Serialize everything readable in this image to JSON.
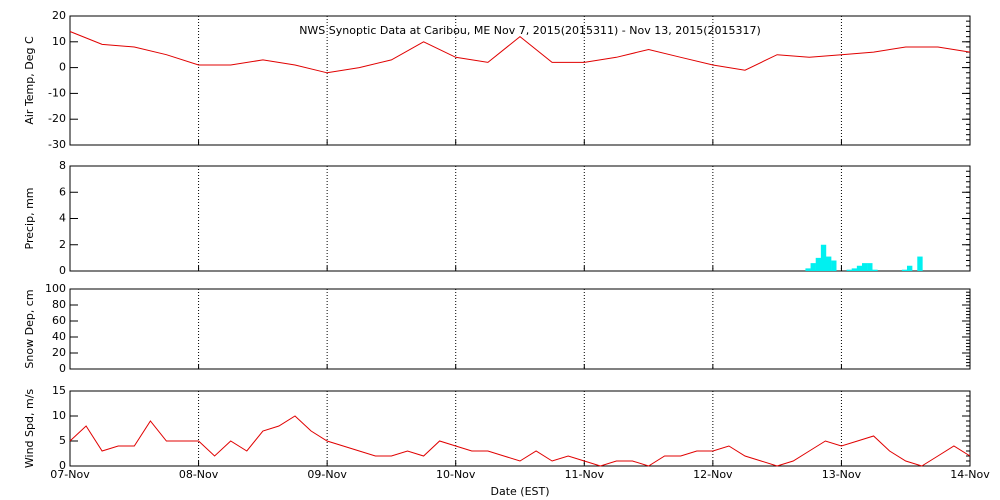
{
  "x_axis": {
    "label": "Date (EST)",
    "xlim": [
      0,
      7
    ],
    "xticks": [
      {
        "value": 0,
        "label": "07-Nov"
      },
      {
        "value": 1,
        "label": "08-Nov"
      },
      {
        "value": 2,
        "label": "09-Nov"
      },
      {
        "value": 3,
        "label": "10-Nov"
      },
      {
        "value": 4,
        "label": "11-Nov"
      },
      {
        "value": 5,
        "label": "12-Nov"
      },
      {
        "value": 6,
        "label": "13-Nov"
      },
      {
        "value": 7,
        "label": "14-Nov"
      }
    ]
  },
  "chart_data": [
    {
      "type": "line",
      "title": "NWS Synoptic Data at Caribou, ME   Nov  7, 2015(2015311) - Nov 13, 2015(2015317)",
      "y_label": "Air Temp, Deg C",
      "ylim": [
        -30,
        20
      ],
      "yticks": [
        -30,
        -20,
        -10,
        0,
        10,
        20
      ],
      "grid": true,
      "color": "#e00000",
      "x": [
        0,
        0.25,
        0.5,
        0.75,
        1,
        1.25,
        1.5,
        1.75,
        2,
        2.25,
        2.5,
        2.75,
        3,
        3.25,
        3.5,
        3.75,
        4,
        4.25,
        4.5,
        4.75,
        5,
        5.25,
        5.5,
        5.75,
        6,
        6.25,
        6.5,
        6.75,
        7
      ],
      "values": [
        14,
        9,
        8,
        5,
        1,
        1,
        3,
        1,
        -2,
        0,
        3,
        10,
        4,
        2,
        12,
        2,
        2,
        4,
        7,
        4,
        1,
        -1,
        5,
        4,
        5,
        6,
        8,
        8,
        6
      ]
    },
    {
      "type": "bar",
      "y_label": "Precip, mm",
      "ylim": [
        0,
        8
      ],
      "yticks": [
        0,
        2,
        4,
        6,
        8
      ],
      "grid": true,
      "color": "#00f0f0",
      "x": [
        5.72,
        5.76,
        5.8,
        5.84,
        5.88,
        5.92,
        6.04,
        6.08,
        6.12,
        6.16,
        6.2,
        6.24,
        6.47,
        6.51,
        6.59
      ],
      "values": [
        0.2,
        0.6,
        1.0,
        2.0,
        1.1,
        0.8,
        0.1,
        0.2,
        0.4,
        0.6,
        0.6,
        0.1,
        0.1,
        0.4,
        1.1
      ]
    },
    {
      "type": "empty",
      "y_label": "Snow Dep, cm",
      "ylim": [
        0,
        100
      ],
      "yticks": [
        0,
        20,
        40,
        60,
        80,
        100
      ],
      "grid": true
    },
    {
      "type": "line",
      "y_label": "Wind Spd, m/s",
      "ylim": [
        0,
        15
      ],
      "yticks": [
        0,
        5,
        10,
        15
      ],
      "grid": true,
      "color": "#e00000",
      "x": [
        0,
        0.125,
        0.25,
        0.375,
        0.5,
        0.625,
        0.75,
        0.875,
        1,
        1.125,
        1.25,
        1.375,
        1.5,
        1.625,
        1.75,
        1.875,
        2,
        2.125,
        2.25,
        2.375,
        2.5,
        2.625,
        2.75,
        2.875,
        3,
        3.125,
        3.25,
        3.375,
        3.5,
        3.625,
        3.75,
        3.875,
        4,
        4.125,
        4.25,
        4.375,
        4.5,
        4.625,
        4.75,
        4.875,
        5,
        5.125,
        5.25,
        5.375,
        5.5,
        5.625,
        5.75,
        5.875,
        6,
        6.125,
        6.25,
        6.375,
        6.5,
        6.625,
        6.75,
        6.875,
        7
      ],
      "values": [
        5,
        8,
        3,
        4,
        4,
        9,
        5,
        5,
        5,
        2,
        5,
        3,
        7,
        8,
        10,
        7,
        5,
        4,
        3,
        2,
        2,
        3,
        2,
        5,
        4,
        3,
        3,
        2,
        1,
        3,
        1,
        2,
        1,
        0,
        1,
        1,
        0,
        2,
        2,
        3,
        3,
        4,
        2,
        1,
        0,
        1,
        3,
        5,
        4,
        5,
        6,
        3,
        1,
        0,
        2,
        4,
        2
      ]
    }
  ]
}
